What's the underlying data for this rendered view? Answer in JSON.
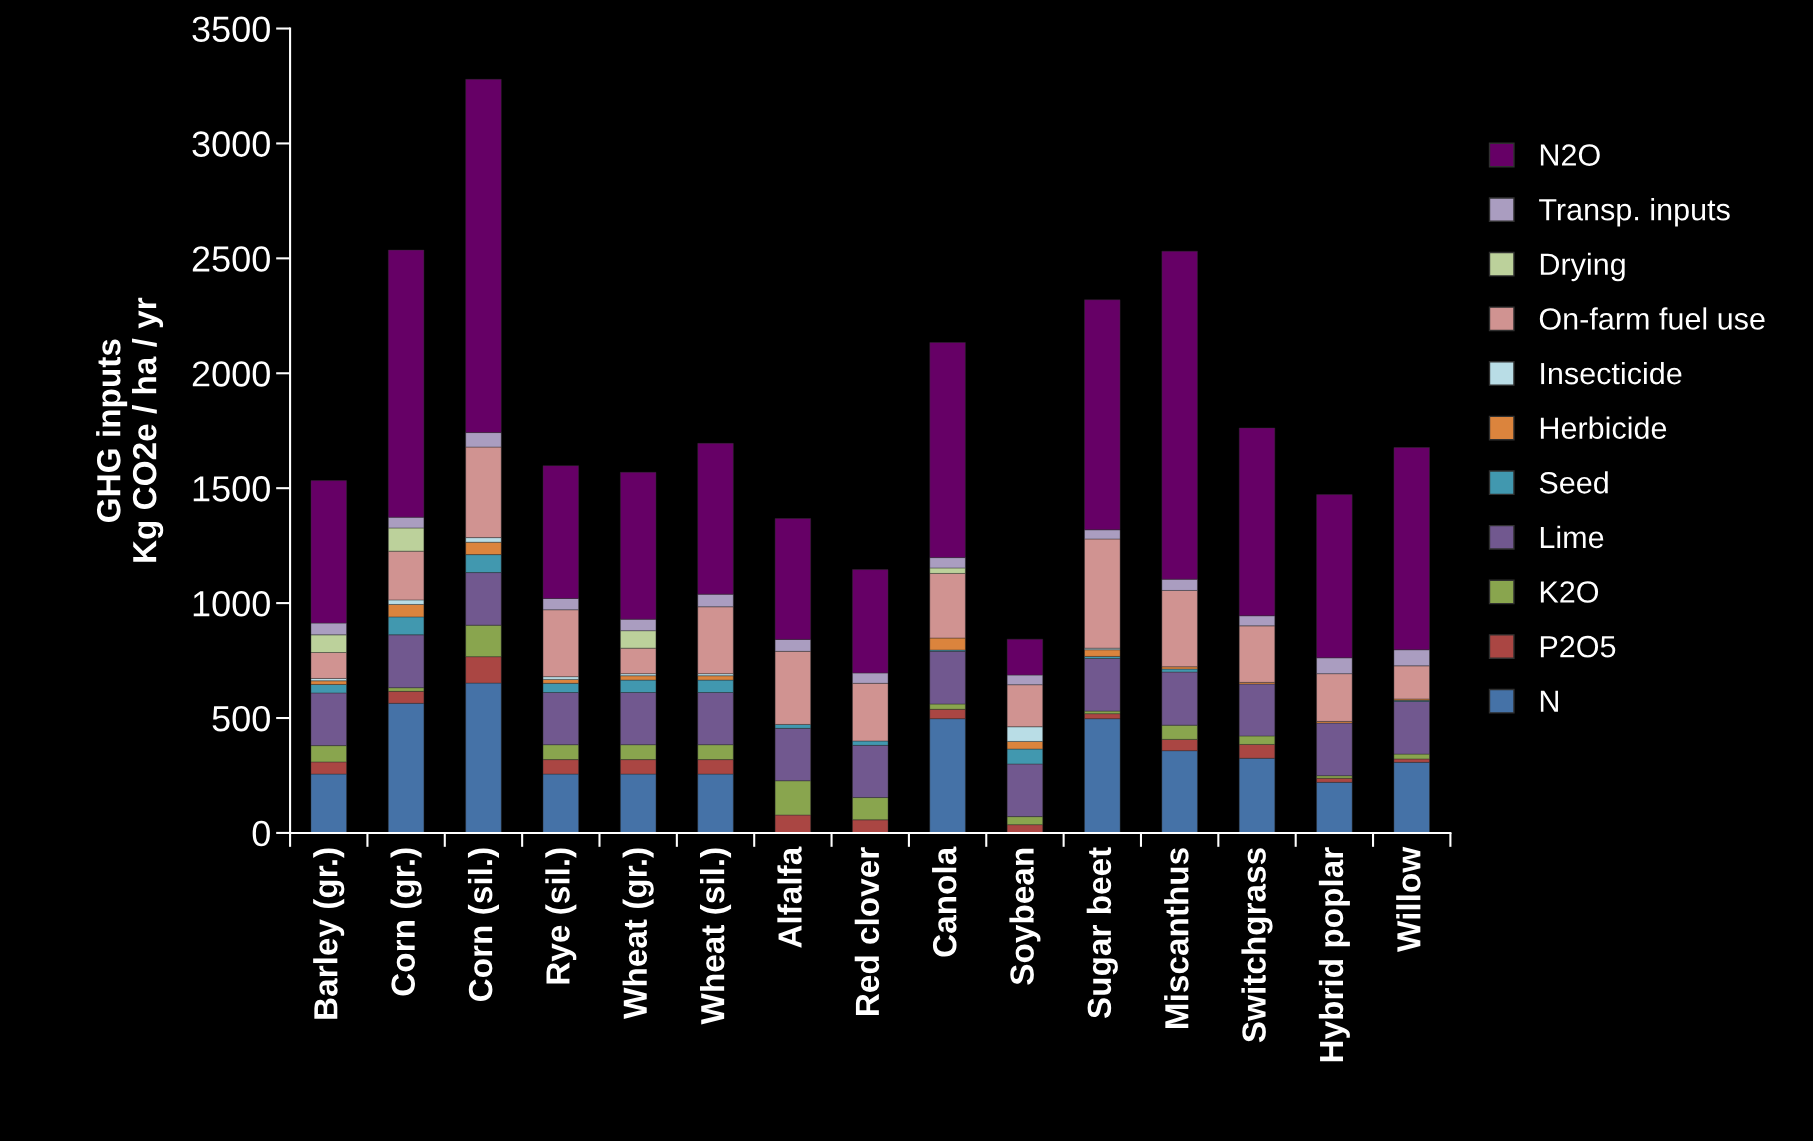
{
  "chart_data": {
    "type": "bar",
    "stacked": true,
    "ylabel": "GHG inputs\nKg CO2e / ha / yr",
    "categories": [
      "Barley (gr.)",
      "Corn (gr.)",
      "Corn (sil.)",
      "Rye (sil.)",
      "Wheat (gr.)",
      "Wheat (sil.)",
      "Alfalfa",
      "Red clover",
      "Canola",
      "Soybean",
      "Sugar beet",
      "Miscanthus",
      "Switchgrass",
      "Hybrid poplar",
      "Willow"
    ],
    "series": [
      {
        "name": "N",
        "color": "#4572a7",
        "values": [
          256,
          564,
          652,
          256,
          256,
          256,
          0,
          0,
          497,
          0,
          497,
          358,
          325,
          220,
          307
        ]
      },
      {
        "name": "P2O5",
        "color": "#aa4643",
        "values": [
          53,
          52,
          115,
          63,
          63,
          63,
          78,
          57,
          41,
          36,
          22,
          49,
          60,
          18,
          15
        ]
      },
      {
        "name": "K2O",
        "color": "#89a54e",
        "values": [
          71,
          16,
          137,
          65,
          65,
          65,
          149,
          97,
          23,
          35,
          11,
          62,
          37,
          11,
          21
        ]
      },
      {
        "name": "Lime",
        "color": "#71588f",
        "values": [
          229,
          230,
          229,
          227,
          227,
          227,
          228,
          227,
          229,
          229,
          229,
          231,
          226,
          229,
          229
        ]
      },
      {
        "name": "Seed",
        "color": "#4198af",
        "values": [
          37,
          78,
          78,
          40,
          54,
          54,
          17,
          19,
          6,
          65,
          9,
          13,
          0,
          0,
          5
        ]
      },
      {
        "name": "Herbicide",
        "color": "#db843d",
        "values": [
          16,
          54,
          54,
          17,
          19,
          19,
          0,
          0,
          52,
          33,
          29,
          10,
          7,
          7,
          6
        ]
      },
      {
        "name": "Insecticide",
        "color": "#b9dde6",
        "values": [
          10,
          20,
          20,
          12,
          9,
          9,
          0,
          0,
          0,
          64,
          7,
          0,
          0,
          0,
          0
        ]
      },
      {
        "name": "On-farm fuel use",
        "color": "#d09391",
        "values": [
          113,
          212,
          394,
          291,
          111,
          291,
          318,
          251,
          281,
          183,
          475,
          332,
          246,
          208,
          144
        ]
      },
      {
        "name": "Drying",
        "color": "#bcd19b",
        "values": [
          77,
          101,
          0,
          0,
          76,
          0,
          0,
          0,
          24,
          0,
          0,
          0,
          0,
          0,
          0
        ]
      },
      {
        "name": "Transp. inputs",
        "color": "#aa9dc0",
        "values": [
          51,
          47,
          63,
          49,
          50,
          55,
          52,
          45,
          45,
          42,
          40,
          49,
          44,
          69,
          70
        ]
      },
      {
        "name": "N2O",
        "color": "#660066",
        "values": [
          620,
          1162,
          1537,
          578,
          639,
          656,
          526,
          450,
          936,
          156,
          1001,
          1427,
          817,
          710,
          880
        ]
      }
    ],
    "ylim": [
      0,
      3500
    ],
    "yticks": [
      0,
      500,
      1000,
      1500,
      2000,
      2500,
      3000,
      3500
    ],
    "grid": false,
    "legend": "right"
  }
}
